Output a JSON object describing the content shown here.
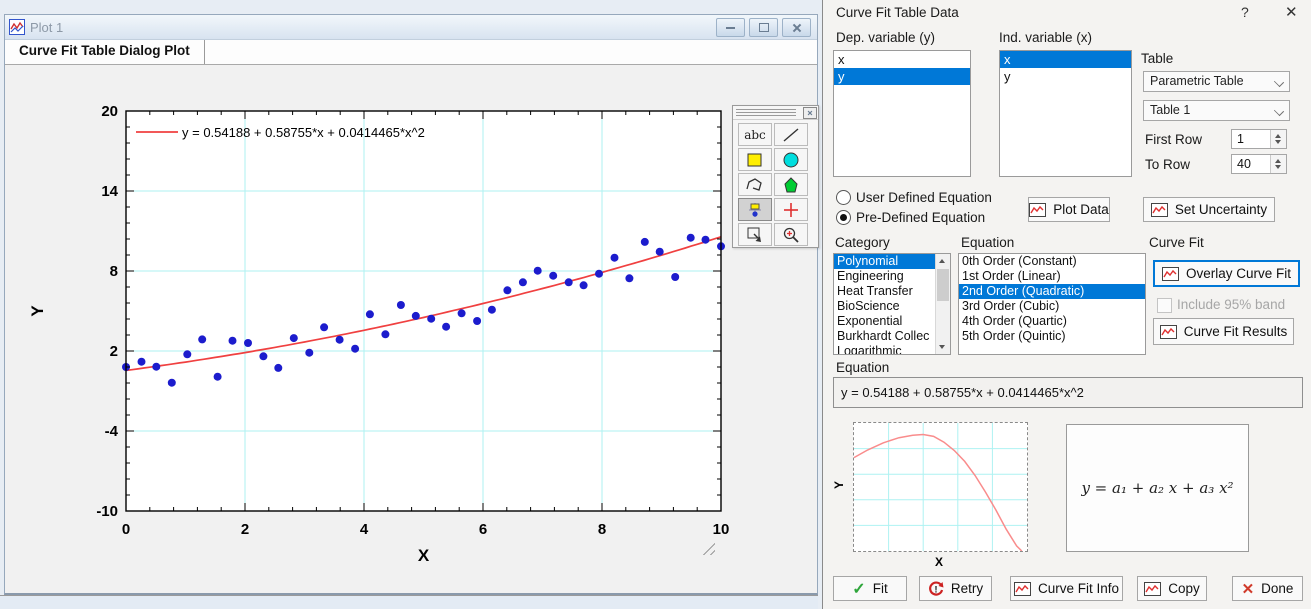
{
  "colors": {
    "selection": "#0078d7",
    "fit_line": "#f04040",
    "points": "#1c1ccd",
    "grid": "#aef2f2"
  },
  "plot_window": {
    "title": "Plot 1",
    "tab": "Curve Fit Table Dialog Plot",
    "text_tool_label": "abc"
  },
  "chart_data": {
    "type": "scatter",
    "title": "",
    "xlabel": "X",
    "ylabel": "Y",
    "xlim": [
      0,
      10
    ],
    "ylim": [
      -10,
      20
    ],
    "xticks": [
      0,
      2,
      4,
      6,
      8,
      10
    ],
    "yticks": [
      -10,
      -4,
      2,
      8,
      14,
      20
    ],
    "x_minor_step": 0.4,
    "y_minor_step": 1.2,
    "grid": true,
    "grid_color": "#aef2f2",
    "legend": {
      "label": "y = 0.54188 + 0.58755*x + 0.0414465*x^2",
      "color": "#f04040",
      "position": "top-left"
    },
    "series": [
      {
        "name": "table-data",
        "type": "scatter",
        "color": "#1c1ccd",
        "points": [
          [
            0,
            0.8
          ],
          [
            0.26,
            1.2
          ],
          [
            0.51,
            0.82
          ],
          [
            0.77,
            -0.38
          ],
          [
            1.03,
            1.75
          ],
          [
            1.28,
            2.87
          ],
          [
            1.54,
            0.07
          ],
          [
            1.79,
            2.77
          ],
          [
            2.05,
            2.6
          ],
          [
            2.31,
            1.6
          ],
          [
            2.56,
            0.73
          ],
          [
            2.82,
            2.97
          ],
          [
            3.08,
            1.87
          ],
          [
            3.33,
            3.78
          ],
          [
            3.59,
            2.85
          ],
          [
            3.85,
            2.17
          ],
          [
            4.1,
            4.75
          ],
          [
            4.36,
            3.25
          ],
          [
            4.62,
            5.45
          ],
          [
            4.87,
            4.63
          ],
          [
            5.13,
            4.42
          ],
          [
            5.38,
            3.82
          ],
          [
            5.64,
            4.83
          ],
          [
            5.9,
            4.25
          ],
          [
            6.15,
            5.1
          ],
          [
            6.41,
            6.55
          ],
          [
            6.67,
            7.15
          ],
          [
            6.92,
            8.02
          ],
          [
            7.18,
            7.65
          ],
          [
            7.44,
            7.15
          ],
          [
            7.69,
            6.93
          ],
          [
            7.95,
            7.8
          ],
          [
            8.21,
            9.0
          ],
          [
            8.46,
            7.45
          ],
          [
            8.72,
            10.18
          ],
          [
            8.97,
            9.45
          ],
          [
            9.23,
            7.55
          ],
          [
            9.49,
            10.5
          ],
          [
            9.74,
            10.35
          ],
          [
            10,
            9.85
          ]
        ]
      },
      {
        "name": "curve-fit",
        "type": "line",
        "color": "#f04040",
        "equation": "y = 0.54188 + 0.58755*x + 0.0414465*x^2",
        "coeffs": [
          0.54188,
          0.58755,
          0.0414465
        ]
      }
    ]
  },
  "dialog": {
    "title": "Curve Fit Table Data",
    "help_label": "?",
    "close_label": "✕",
    "dep_label": "Dep. variable (y)",
    "ind_label": "Ind. variable (x)",
    "dep_items": [
      {
        "label": "x",
        "selected": false
      },
      {
        "label": "y",
        "selected": true
      }
    ],
    "ind_items": [
      {
        "label": "x",
        "selected": true
      },
      {
        "label": "y",
        "selected": false
      }
    ],
    "table": {
      "label": "Table",
      "source": "Parametric Table",
      "name": "Table 1",
      "first_row_label": "First Row",
      "first_row_value": "1",
      "to_row_label": "To Row",
      "to_row_value": "40"
    },
    "equation_mode": [
      {
        "label": "User Defined Equation",
        "selected": false
      },
      {
        "label": "Pre-Defined Equation",
        "selected": true
      }
    ],
    "plot_data_label": "Plot Data",
    "set_uncertainty_label": "Set Uncertainty",
    "category_label": "Category",
    "categories": [
      {
        "label": "Polynomial",
        "selected": true
      },
      {
        "label": "Engineering",
        "selected": false
      },
      {
        "label": "Heat Transfer",
        "selected": false
      },
      {
        "label": "BioScience",
        "selected": false
      },
      {
        "label": "Exponential",
        "selected": false
      },
      {
        "label": "Burkhardt Collec",
        "selected": false
      },
      {
        "label": "Logarithmic",
        "selected": false
      }
    ],
    "equation_list_label": "Equation",
    "equations": [
      {
        "label": "0th Order (Constant)",
        "selected": false
      },
      {
        "label": "1st Order (Linear)",
        "selected": false
      },
      {
        "label": "2nd Order (Quadratic)",
        "selected": true
      },
      {
        "label": "3rd Order (Cubic)",
        "selected": false
      },
      {
        "label": "4th Order (Quartic)",
        "selected": false
      },
      {
        "label": "5th Order (Quintic)",
        "selected": false
      }
    ],
    "curve_fit_label": "Curve Fit",
    "overlay_label": "Overlay Curve Fit",
    "include_band_label": "Include 95% band",
    "results_label": "Curve Fit Results",
    "equation_field_label": "Equation",
    "equation_value": "y = 0.54188 + 0.58755*x + 0.0414465*x^2",
    "preview": {
      "xlabel": "X",
      "ylabel": "Y",
      "grid_color": "#aef2f2",
      "line_color": "#f98c8c",
      "curve": [
        [
          0,
          0.27
        ],
        [
          0.08,
          0.21
        ],
        [
          0.17,
          0.155
        ],
        [
          0.26,
          0.115
        ],
        [
          0.34,
          0.095
        ],
        [
          0.4,
          0.09
        ],
        [
          0.46,
          0.105
        ],
        [
          0.52,
          0.15
        ],
        [
          0.58,
          0.215
        ],
        [
          0.64,
          0.3
        ],
        [
          0.7,
          0.41
        ],
        [
          0.76,
          0.54
        ],
        [
          0.82,
          0.68
        ],
        [
          0.88,
          0.83
        ],
        [
          0.94,
          0.96
        ],
        [
          0.97,
          1.0
        ]
      ]
    },
    "formula": "y = a₁ + a₂ x + a₃ x²",
    "footer": [
      {
        "label": "Fit",
        "icon": "check"
      },
      {
        "label": "Retry",
        "icon": "retry"
      },
      {
        "label": "Curve Fit Info",
        "icon": "chart"
      },
      {
        "label": "Copy",
        "icon": "chart"
      },
      {
        "label": "Done",
        "icon": "x"
      }
    ]
  }
}
